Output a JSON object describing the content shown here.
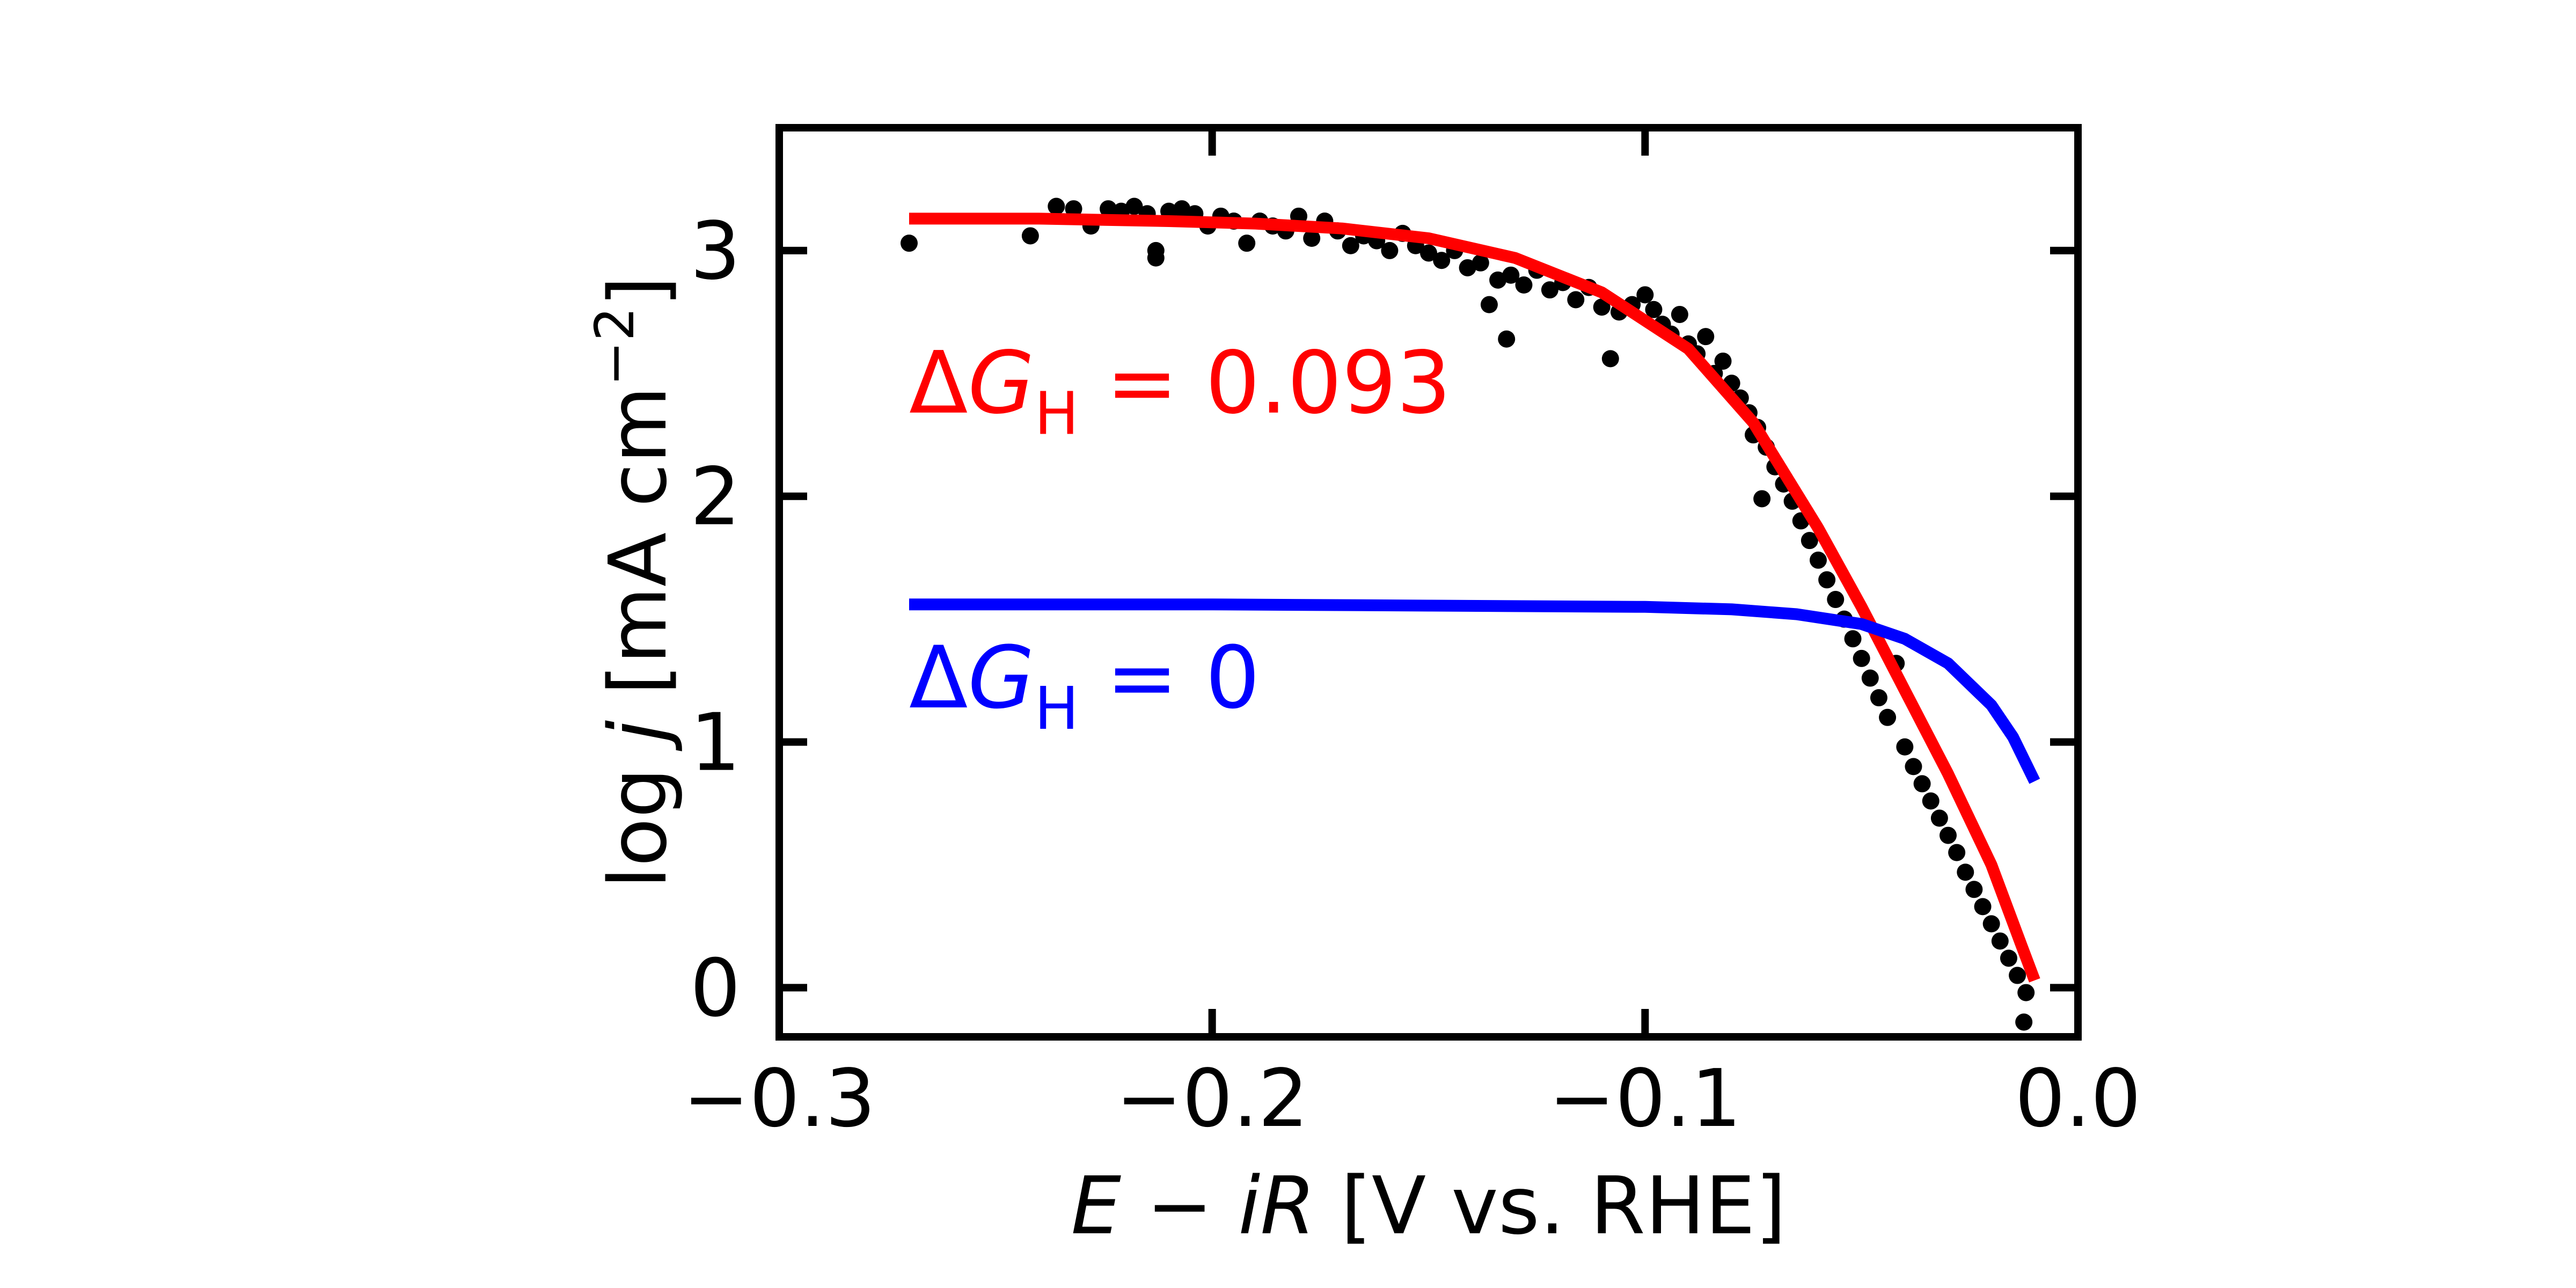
{
  "chart_data": {
    "type": "scatter",
    "xlabel": {
      "italic1": "E",
      "mid": " − ",
      "italic2": "iR",
      "rest": " [V vs. RHE]"
    },
    "ylabel": {
      "pre": "log ",
      "italic": "j",
      "post": " [mA cm",
      "sup": "−2",
      "close": "]"
    },
    "xlim": [
      -0.3,
      0.0
    ],
    "ylim": [
      -0.2,
      3.5
    ],
    "x_ticks": [
      -0.3,
      -0.2,
      -0.1,
      0.0
    ],
    "x_tick_labels": [
      "−0.3",
      "−0.2",
      "−0.1",
      "0.0"
    ],
    "y_ticks": [
      0,
      1,
      2,
      3
    ],
    "y_tick_labels": [
      "0",
      "1",
      "2",
      "3"
    ],
    "grid": false,
    "annotations": [
      {
        "delta": "Δ",
        "italic": "G",
        "sub": "H",
        "value": " = 0.093",
        "color": "#ff0000",
        "x": -0.27,
        "y": 2.45
      },
      {
        "delta": "Δ",
        "italic": "G",
        "sub": "H",
        "value": " = 0",
        "color": "#0000ff",
        "x": -0.27,
        "y": 1.25
      }
    ],
    "series": [
      {
        "kind": "scatter",
        "color": "#000000",
        "points": [
          [
            -0.27,
            3.03
          ],
          [
            -0.242,
            3.06
          ],
          [
            -0.236,
            3.18
          ],
          [
            -0.232,
            3.17
          ],
          [
            -0.228,
            3.1
          ],
          [
            -0.224,
            3.17
          ],
          [
            -0.221,
            3.16
          ],
          [
            -0.218,
            3.18
          ],
          [
            -0.215,
            3.15
          ],
          [
            -0.213,
            3.0
          ],
          [
            -0.213,
            2.97
          ],
          [
            -0.21,
            3.16
          ],
          [
            -0.207,
            3.17
          ],
          [
            -0.204,
            3.15
          ],
          [
            -0.201,
            3.1
          ],
          [
            -0.198,
            3.14
          ],
          [
            -0.195,
            3.12
          ],
          [
            -0.192,
            3.03
          ],
          [
            -0.189,
            3.12
          ],
          [
            -0.186,
            3.1
          ],
          [
            -0.183,
            3.08
          ],
          [
            -0.18,
            3.14
          ],
          [
            -0.177,
            3.05
          ],
          [
            -0.174,
            3.12
          ],
          [
            -0.171,
            3.08
          ],
          [
            -0.168,
            3.02
          ],
          [
            -0.165,
            3.06
          ],
          [
            -0.162,
            3.04
          ],
          [
            -0.159,
            3.0
          ],
          [
            -0.156,
            3.07
          ],
          [
            -0.153,
            3.02
          ],
          [
            -0.15,
            2.99
          ],
          [
            -0.147,
            2.96
          ],
          [
            -0.144,
            3.0
          ],
          [
            -0.141,
            2.93
          ],
          [
            -0.138,
            2.95
          ],
          [
            -0.136,
            2.78
          ],
          [
            -0.134,
            2.88
          ],
          [
            -0.132,
            2.64
          ],
          [
            -0.131,
            2.9
          ],
          [
            -0.128,
            2.86
          ],
          [
            -0.125,
            2.92
          ],
          [
            -0.122,
            2.84
          ],
          [
            -0.119,
            2.87
          ],
          [
            -0.116,
            2.8
          ],
          [
            -0.113,
            2.85
          ],
          [
            -0.11,
            2.77
          ],
          [
            -0.108,
            2.56
          ],
          [
            -0.106,
            2.75
          ],
          [
            -0.103,
            2.78
          ],
          [
            -0.1,
            2.82
          ],
          [
            -0.098,
            2.76
          ],
          [
            -0.096,
            2.7
          ],
          [
            -0.094,
            2.66
          ],
          [
            -0.092,
            2.74
          ],
          [
            -0.09,
            2.62
          ],
          [
            -0.088,
            2.58
          ],
          [
            -0.086,
            2.65
          ],
          [
            -0.084,
            2.5
          ],
          [
            -0.082,
            2.55
          ],
          [
            -0.08,
            2.46
          ],
          [
            -0.078,
            2.4
          ],
          [
            -0.076,
            2.34
          ],
          [
            -0.075,
            2.25
          ],
          [
            -0.074,
            2.28
          ],
          [
            -0.073,
            1.99
          ],
          [
            -0.072,
            2.2
          ],
          [
            -0.07,
            2.12
          ],
          [
            -0.068,
            2.05
          ],
          [
            -0.066,
            1.98
          ],
          [
            -0.064,
            1.9
          ],
          [
            -0.062,
            1.82
          ],
          [
            -0.06,
            1.74
          ],
          [
            -0.058,
            1.66
          ],
          [
            -0.056,
            1.58
          ],
          [
            -0.054,
            1.5
          ],
          [
            -0.052,
            1.42
          ],
          [
            -0.05,
            1.34
          ],
          [
            -0.048,
            1.26
          ],
          [
            -0.046,
            1.18
          ],
          [
            -0.044,
            1.1
          ],
          [
            -0.042,
            1.32
          ],
          [
            -0.04,
            0.98
          ],
          [
            -0.038,
            0.9
          ],
          [
            -0.036,
            0.83
          ],
          [
            -0.034,
            0.76
          ],
          [
            -0.032,
            0.69
          ],
          [
            -0.03,
            0.62
          ],
          [
            -0.028,
            0.55
          ],
          [
            -0.026,
            0.47
          ],
          [
            -0.024,
            0.4
          ],
          [
            -0.022,
            0.33
          ],
          [
            -0.02,
            0.26
          ],
          [
            -0.018,
            0.19
          ],
          [
            -0.016,
            0.12
          ],
          [
            -0.014,
            0.05
          ],
          [
            -0.012,
            -0.02
          ],
          [
            -0.0125,
            -0.14
          ]
        ]
      },
      {
        "kind": "line",
        "color": "#ff0000",
        "points": [
          [
            -0.27,
            3.13
          ],
          [
            -0.24,
            3.13
          ],
          [
            -0.21,
            3.12
          ],
          [
            -0.19,
            3.11
          ],
          [
            -0.17,
            3.09
          ],
          [
            -0.15,
            3.05
          ],
          [
            -0.13,
            2.97
          ],
          [
            -0.11,
            2.83
          ],
          [
            -0.09,
            2.6
          ],
          [
            -0.075,
            2.3
          ],
          [
            -0.06,
            1.87
          ],
          [
            -0.05,
            1.55
          ],
          [
            -0.04,
            1.21
          ],
          [
            -0.03,
            0.87
          ],
          [
            -0.02,
            0.5
          ],
          [
            -0.013,
            0.17
          ],
          [
            -0.01,
            0.03
          ]
        ]
      },
      {
        "kind": "line",
        "color": "#0000ff",
        "points": [
          [
            -0.27,
            1.56
          ],
          [
            -0.2,
            1.56
          ],
          [
            -0.15,
            1.555
          ],
          [
            -0.1,
            1.55
          ],
          [
            -0.08,
            1.54
          ],
          [
            -0.065,
            1.52
          ],
          [
            -0.05,
            1.48
          ],
          [
            -0.04,
            1.42
          ],
          [
            -0.03,
            1.32
          ],
          [
            -0.02,
            1.15
          ],
          [
            -0.015,
            1.02
          ],
          [
            -0.01,
            0.84
          ]
        ]
      }
    ]
  }
}
